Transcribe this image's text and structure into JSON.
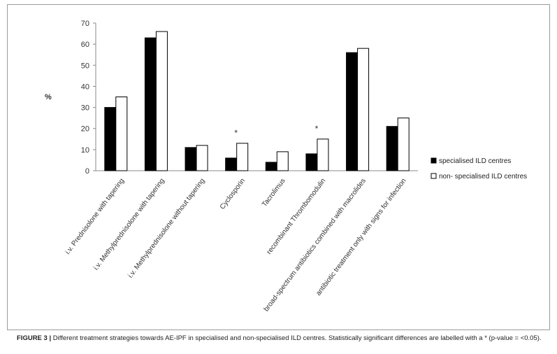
{
  "chart_data": {
    "type": "bar",
    "ylabel": "%",
    "ylim": [
      0,
      70
    ],
    "yticks": [
      0,
      10,
      20,
      30,
      40,
      50,
      60,
      70
    ],
    "grid": false,
    "legend_position": "right",
    "categories": [
      "i.v. Prednisolone with tapering",
      "i.v. Methylprednisolone with tapering",
      "i.v. Methylprednisolone without tapering",
      "Cyclosporin",
      "Tacrolimus",
      "recombinant Thrombomodulin",
      "broad-spectrum antibiotics combined with macrolides",
      "antibiotic treatment only with signs for infection"
    ],
    "series": [
      {
        "name": "specialised ILD centres",
        "color": "#000000",
        "values": [
          30,
          63,
          11,
          6,
          4,
          8,
          56,
          21
        ]
      },
      {
        "name": "non- specialised ILD centres",
        "color": "#ffffff",
        "values": [
          35,
          66,
          12,
          13,
          9,
          15,
          58,
          25
        ]
      }
    ],
    "significance_marker": "*",
    "significant_categories": [
      3,
      5
    ]
  },
  "caption": {
    "label": "FIGURE 3 |",
    "text": " Different treatment strategies towards AE-IPF in specialised and non-specialised ILD centres. Statistically significant differences are labelled with a * (p-value = <0.05)."
  }
}
